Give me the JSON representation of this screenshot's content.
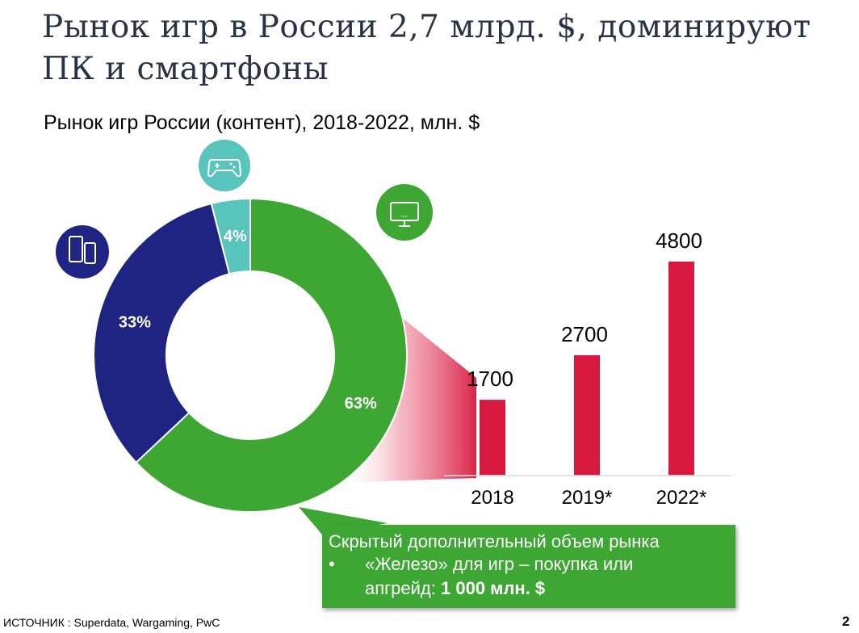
{
  "slide": {
    "title": "Рынок игр в России 2,7 млрд. $, доминируют ПК и смартфоны",
    "subtitle": "Рынок игр России (контент), 2018-2022, млн. $",
    "source": "ИСТОЧНИК : Superdata, Wargaming, PwC",
    "page_number": "2"
  },
  "chart_data": [
    {
      "type": "pie",
      "variant": "donut",
      "slices": [
        {
          "label": "63%",
          "value": 63,
          "color": "#3ea734",
          "icon": "desktop-monitor-icon"
        },
        {
          "label": "33%",
          "value": 33,
          "color": "#1f2482",
          "icon": "smartphones-icon"
        },
        {
          "label": "4%",
          "value": 4,
          "color": "#58c4bc",
          "icon": "gamepad-icon"
        }
      ]
    },
    {
      "type": "bar",
      "categories": [
        "2018",
        "2019*",
        "2022*"
      ],
      "values": [
        1700,
        2700,
        4800
      ],
      "value_labels": [
        "1700",
        "2700",
        "4800"
      ],
      "color": "#d7193f",
      "grid": false
    }
  ],
  "callout": {
    "heading": "Скрытый дополнительный объем рынка",
    "bullet": "•",
    "line1": "«Железо» для игр – покупка или",
    "line2_text": "апгрейд: ",
    "line2_bold": "1 000 млн. $"
  }
}
